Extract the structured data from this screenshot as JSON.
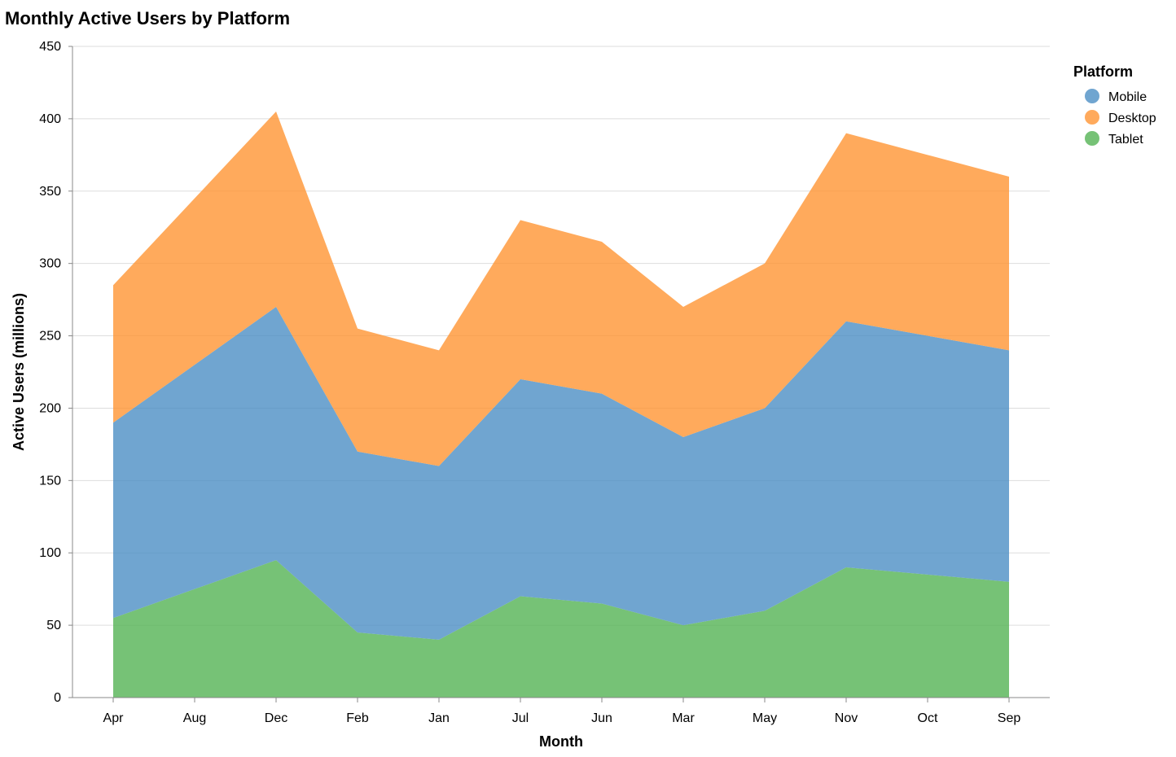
{
  "chart_data": {
    "type": "area",
    "stacked": true,
    "title": "Monthly Active Users by Platform",
    "xlabel": "Month",
    "ylabel": "Active Users (millions)",
    "categories": [
      "Apr",
      "Aug",
      "Dec",
      "Feb",
      "Jan",
      "Jul",
      "Jun",
      "Mar",
      "May",
      "Nov",
      "Oct",
      "Sep"
    ],
    "ylim": [
      0,
      450
    ],
    "yticks": [
      0,
      50,
      100,
      150,
      200,
      250,
      300,
      350,
      400,
      450
    ],
    "grid": true,
    "legend": {
      "title": "Platform",
      "position": "top-right"
    },
    "series": [
      {
        "name": "Mobile",
        "color": "#4c8fc4",
        "values": [
          135,
          155,
          175,
          125,
          120,
          150,
          145,
          130,
          140,
          170,
          165,
          160
        ]
      },
      {
        "name": "Desktop",
        "color": "#ff9533",
        "values": [
          95,
          115,
          135,
          85,
          80,
          110,
          105,
          90,
          100,
          130,
          125,
          120
        ]
      },
      {
        "name": "Tablet",
        "color": "#54b354",
        "values": [
          55,
          75,
          95,
          45,
          40,
          70,
          65,
          50,
          60,
          90,
          85,
          80
        ]
      }
    ],
    "stack_order_bottom_to_top": [
      "Tablet",
      "Mobile",
      "Desktop"
    ]
  }
}
